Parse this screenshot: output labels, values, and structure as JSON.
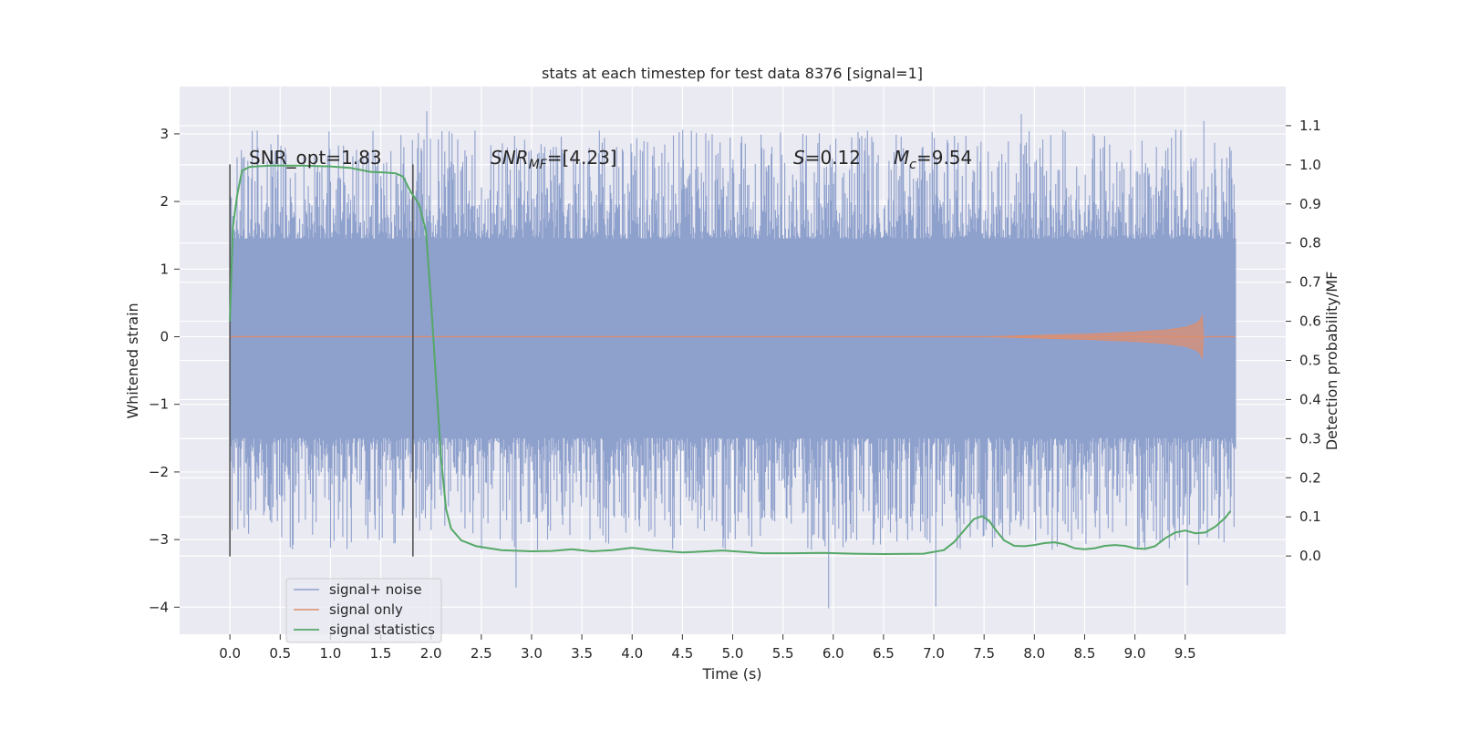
{
  "chart_data": {
    "type": "line",
    "title": "stats at each timestep for test data 8376 [signal=1]",
    "xlabel": "Time (s)",
    "ylabel": "Whitened strain",
    "ylabel_right": "Detection probability/MF",
    "xlim": [
      -0.5,
      10.5
    ],
    "ylim": [
      -4.4,
      3.7
    ],
    "ylim_right": [
      -0.2,
      1.2
    ],
    "x_ticks": [
      0.0,
      0.5,
      1.0,
      1.5,
      2.0,
      2.5,
      3.0,
      3.5,
      4.0,
      4.5,
      5.0,
      5.5,
      6.0,
      6.5,
      7.0,
      7.5,
      8.0,
      8.5,
      9.0,
      9.5
    ],
    "x_tick_labels": [
      "0.0",
      "0.5",
      "1.0",
      "1.5",
      "2.0",
      "2.5",
      "3.0",
      "3.5",
      "4.0",
      "4.5",
      "5.0",
      "5.5",
      "6.0",
      "6.5",
      "7.0",
      "7.5",
      "8.0",
      "8.5",
      "9.0",
      "9.5"
    ],
    "y_ticks": [
      3,
      2,
      1,
      0,
      -1,
      -2,
      -3,
      -4
    ],
    "y_tick_labels": [
      "3",
      "2",
      "1",
      "0",
      "−1",
      "−2",
      "−3",
      "−4"
    ],
    "y_right_ticks": [
      1.1,
      1.0,
      0.9,
      0.8,
      0.7,
      0.6,
      0.5,
      0.4,
      0.3,
      0.2,
      0.1,
      0.0
    ],
    "y_right_tick_labels": [
      "1.1",
      "1.0",
      "0.9",
      "0.8",
      "0.7",
      "0.6",
      "0.5",
      "0.4",
      "0.3",
      "0.2",
      "0.1",
      "0.0"
    ],
    "grid": true,
    "legend_position": "bottom-left",
    "annotations": {
      "snr_opt": "SNR_opt=1.83",
      "snr_mf_main": "SNR",
      "snr_mf_sub": "MF",
      "snr_mf_value": "=[4.23]",
      "s_main": "S",
      "s_value": "=0.12",
      "mc_main": "M",
      "mc_sub": "c",
      "mc_value": "=9.54"
    },
    "vlines": [
      {
        "x": 0.0,
        "y_range": [
          -3.25,
          2.55
        ]
      },
      {
        "x": 1.82,
        "y_range": [
          -3.25,
          2.55
        ]
      }
    ],
    "series": [
      {
        "name": "signal+ noise",
        "color": "#8ea0cc",
        "x_range": [
          0.0,
          10.0
        ],
        "typical_envelope": [
          -1.5,
          1.45
        ],
        "peak_max": 3.35,
        "peak_min": -4.05
      },
      {
        "name": "signal only",
        "color": "#dd8f70",
        "x": [
          0.0,
          7.5,
          8.5,
          9.0,
          9.3,
          9.5,
          9.6,
          9.65,
          9.67,
          9.68
        ],
        "amplitude": [
          0.0,
          0.0,
          0.04,
          0.07,
          0.1,
          0.14,
          0.19,
          0.25,
          0.32,
          0.0
        ]
      },
      {
        "name": "signal statistics",
        "color": "#55a868",
        "axis": "right",
        "x": [
          0.0,
          0.03,
          0.07,
          0.12,
          0.2,
          0.4,
          0.7,
          1.0,
          1.2,
          1.4,
          1.55,
          1.65,
          1.72,
          1.8,
          1.88,
          1.95,
          2.0,
          2.05,
          2.1,
          2.15,
          2.2,
          2.3,
          2.45,
          2.7,
          3.0,
          3.2,
          3.4,
          3.6,
          3.8,
          4.0,
          4.2,
          4.5,
          4.9,
          5.3,
          5.6,
          5.9,
          6.2,
          6.5,
          6.9,
          7.1,
          7.2,
          7.3,
          7.4,
          7.48,
          7.55,
          7.62,
          7.7,
          7.8,
          7.9,
          8.0,
          8.1,
          8.2,
          8.3,
          8.4,
          8.5,
          8.6,
          8.7,
          8.8,
          8.9,
          9.0,
          9.1,
          9.2,
          9.3,
          9.4,
          9.5,
          9.6,
          9.7,
          9.8,
          9.9,
          9.95
        ],
        "y": [
          0.6,
          0.84,
          0.92,
          0.985,
          0.995,
          0.998,
          0.998,
          0.996,
          0.992,
          0.982,
          0.98,
          0.978,
          0.97,
          0.93,
          0.9,
          0.83,
          0.65,
          0.45,
          0.25,
          0.12,
          0.07,
          0.04,
          0.025,
          0.015,
          0.012,
          0.013,
          0.017,
          0.012,
          0.015,
          0.021,
          0.015,
          0.009,
          0.014,
          0.007,
          0.007,
          0.008,
          0.006,
          0.005,
          0.006,
          0.015,
          0.035,
          0.065,
          0.095,
          0.102,
          0.09,
          0.065,
          0.04,
          0.026,
          0.025,
          0.028,
          0.033,
          0.035,
          0.03,
          0.02,
          0.017,
          0.02,
          0.026,
          0.028,
          0.026,
          0.02,
          0.018,
          0.025,
          0.045,
          0.06,
          0.065,
          0.058,
          0.06,
          0.075,
          0.098,
          0.115
        ]
      }
    ]
  }
}
